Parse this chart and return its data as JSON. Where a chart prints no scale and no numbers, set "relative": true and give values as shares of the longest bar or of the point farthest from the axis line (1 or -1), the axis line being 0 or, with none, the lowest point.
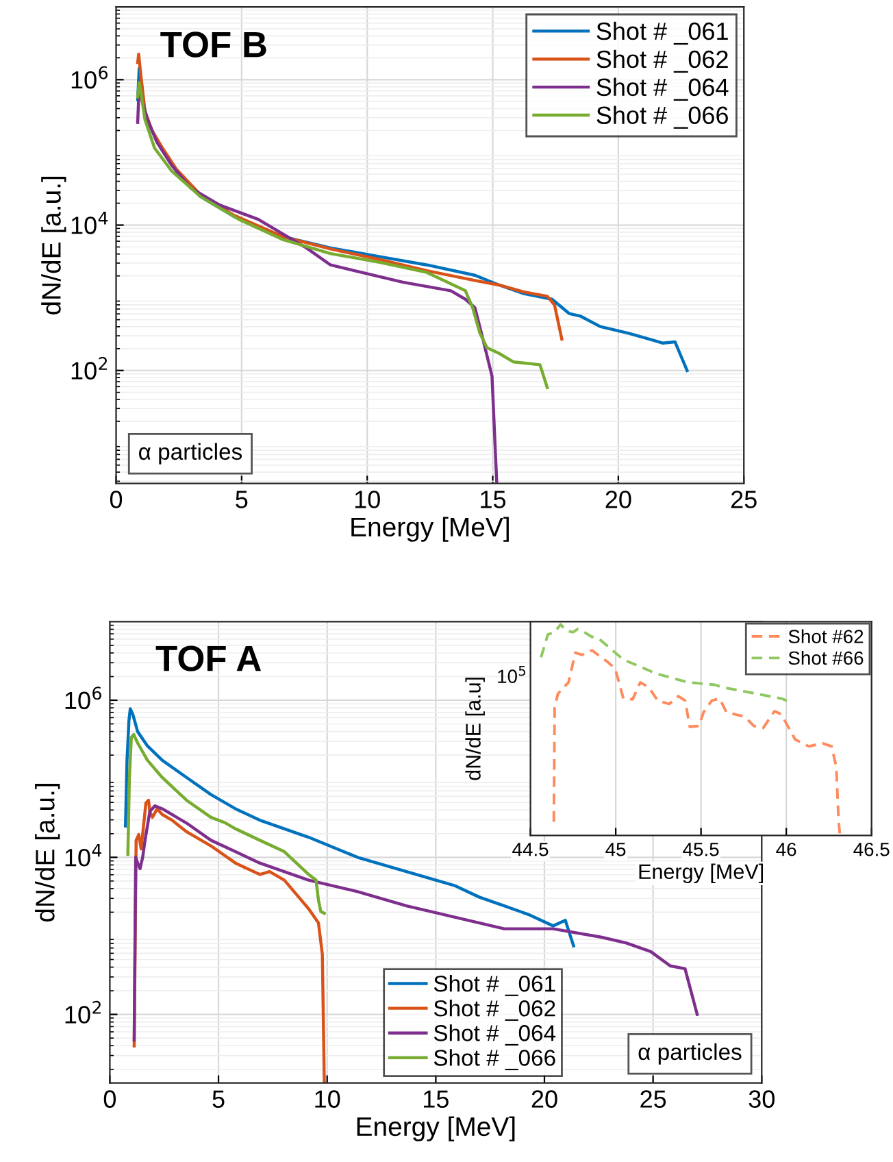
{
  "chart_data": [
    {
      "type": "line",
      "title": "TOF B",
      "xlabel": "Energy [MeV]",
      "ylabel": "dN/dE [a.u.]",
      "log": "y",
      "grid": true,
      "legend": "top right",
      "annotations": [
        "α particles"
      ],
      "xlim": [
        0,
        25
      ],
      "xticks": [
        0,
        5,
        10,
        15,
        20,
        25
      ],
      "ylim": [
        2.8,
        10000000
      ],
      "yticks": [
        {
          "value": 100,
          "label": "10$^{2}$"
        },
        {
          "value": 10000,
          "label": "10$^{4}$"
        },
        {
          "value": 1000000,
          "label": "10$^{6}$"
        }
      ],
      "series": [
        {
          "name": "Shot # _061",
          "color": "#0072bd",
          "x": [
            0.86,
            0.92,
            1.02,
            1.15,
            1.44,
            1.82,
            2.4,
            3.36,
            4.7,
            6.62,
            8.54,
            10.46,
            12.38,
            14.29,
            15.25,
            16.21,
            17.36,
            18.04,
            18.51,
            19.28,
            20.43,
            21.39,
            21.78,
            22.26,
            22.45,
            22.74
          ],
          "values": [
            531000,
            1440000,
            836000,
            338000,
            197000,
            110000,
            55600,
            24700,
            13100,
            6970,
            4850,
            3700,
            2830,
            2040,
            1500,
            1150,
            955,
            608,
            556,
            402,
            324,
            261,
            238,
            247,
            172,
            100
          ]
        },
        {
          "name": "Shot # _062",
          "color": "#d95319",
          "x": [
            0.86,
            0.9,
            0.98,
            1.15,
            1.44,
            1.82,
            2.4,
            3.36,
            4.7,
            6.62,
            8.54,
            10.46,
            12.38,
            14.29,
            15.25,
            16.21,
            17.17,
            17.46,
            17.75
          ],
          "values": [
            1720000,
            2250000,
            1200000,
            371000,
            197000,
            119000,
            58700,
            26100,
            13600,
            6970,
            4690,
            3380,
            2360,
            1730,
            1500,
            1210,
            1050,
            798,
            270
          ]
        },
        {
          "name": "Shot # _064",
          "color": "#7e2f8e",
          "x": [
            0.86,
            0.92,
            1.02,
            1.25,
            1.63,
            2.21,
            2.97,
            4.13,
            5.66,
            7.58,
            8.54,
            9.5,
            11.42,
            13.33,
            13.91,
            14.29,
            14.58,
            14.97,
            15.16
          ],
          "values": [
            258000,
            836000,
            531000,
            282000,
            137000,
            66600,
            32400,
            18800,
            12000,
            4850,
            2830,
            2360,
            1640,
            1250,
            955,
            729,
            296,
            83.5,
            2.8
          ]
        },
        {
          "name": "Shot # _066",
          "color": "#77ac30",
          "x": [
            0.86,
            0.92,
            0.98,
            1.15,
            1.53,
            2.21,
            3.36,
            4.89,
            6.62,
            8.54,
            10.46,
            12.38,
            13.91,
            14.2,
            14.49,
            14.77,
            15.25,
            15.83,
            16.88,
            17.17
          ],
          "values": [
            582000,
            914000,
            697000,
            282000,
            115000,
            55600,
            24700,
            12000,
            6370,
            4060,
            3090,
            2230,
            1250,
            729,
            324,
            206,
            172,
            131,
            120,
            58.2
          ]
        }
      ]
    },
    {
      "type": "line",
      "title": "TOF A",
      "xlabel": "Energy [MeV]",
      "ylabel": "dN/dE [a.u.]",
      "log": "y",
      "grid": true,
      "legend": "bottom",
      "annotations": [
        "α particles"
      ],
      "xlim": [
        0,
        30
      ],
      "xticks": [
        0,
        5,
        10,
        15,
        20,
        25,
        30
      ],
      "ylim": [
        13.4,
        10000000
      ],
      "yticks": [
        {
          "value": 100,
          "label": "10$^{2}$"
        },
        {
          "value": 10000,
          "label": "10$^{4}$"
        },
        {
          "value": 1000000,
          "label": "10$^{6}$"
        }
      ],
      "series": [
        {
          "name": "Shot # _061",
          "color": "#0072bd",
          "x": [
            0.72,
            0.79,
            0.88,
            0.94,
            1.06,
            1.28,
            1.73,
            2.41,
            3.53,
            4.65,
            5.78,
            6.9,
            9.15,
            11.4,
            13.65,
            15.9,
            17.02,
            18.15,
            19.27,
            20.4,
            20.96,
            21.34
          ],
          "values": [
            25100,
            172000,
            556000,
            778000,
            658000,
            398000,
            262000,
            172000,
            104000,
            63100,
            41500,
            29700,
            18000,
            10000,
            6580,
            4330,
            3100,
            2410,
            1870,
            1340,
            1580,
            746
          ]
        },
        {
          "name": "Shot # _062",
          "color": "#d95319",
          "x": [
            1.12,
            1.21,
            1.33,
            1.44,
            1.55,
            1.66,
            1.78,
            1.84,
            1.96,
            2.18,
            2.41,
            2.86,
            3.53,
            4.65,
            5.78,
            6.9,
            7.35,
            8.03,
            8.7,
            9.15,
            9.6,
            9.78,
            9.87
          ],
          "values": [
            39.8,
            16500,
            19500,
            12800,
            25100,
            49100,
            53300,
            38200,
            32300,
            41500,
            35100,
            29700,
            21200,
            14000,
            8450,
            6050,
            6580,
            5120,
            3100,
            2210,
            1460,
            581,
            13.4
          ]
        },
        {
          "name": "Shot # _064",
          "color": "#7e2f8e",
          "x": [
            1.12,
            1.19,
            1.28,
            1.39,
            1.51,
            1.62,
            1.84,
            2.07,
            2.41,
            3.53,
            4.65,
            5.78,
            6.9,
            9.15,
            11.4,
            13.65,
            15.9,
            18.15,
            20.4,
            22.64,
            23.77,
            24.89,
            25.79,
            26.47,
            27.03
          ],
          "values": [
            47.1,
            10000,
            8450,
            7160,
            10000,
            16500,
            38200,
            45200,
            41500,
            27300,
            16500,
            11800,
            8450,
            5120,
            3660,
            2410,
            1720,
            1230,
            1230,
            959,
            811,
            631,
            415,
            382,
            100
          ]
        },
        {
          "name": "Shot # _066",
          "color": "#77ac30",
          "x": [
            0.83,
            0.9,
            0.99,
            1.1,
            1.28,
            1.73,
            2.41,
            3.53,
            4.65,
            5.33,
            5.78,
            6.9,
            8.03,
            9.15,
            9.49,
            9.6,
            9.71,
            9.87
          ],
          "values": [
            10900,
            104000,
            337000,
            366000,
            285000,
            172000,
            104000,
            53300,
            32300,
            27300,
            23100,
            16500,
            11800,
            6050,
            5120,
            2850,
            2040,
            1940
          ]
        }
      ]
    },
    {
      "type": "line",
      "xlabel": "Energy [MeV]",
      "ylabel": "dN/dE [a.u]",
      "relative": true,
      "grid": "x",
      "legend": "top right",
      "line_style": "dashed",
      "annotations": [
        "10$^{5}$"
      ],
      "xlim": [
        44.5,
        46.5
      ],
      "xticks": [
        44.5,
        45,
        45.5,
        46,
        46.5
      ],
      "series": [
        {
          "name": "Shot #62",
          "color": "#ff8a5c",
          "x": [
            44.637,
            44.642,
            44.661,
            44.696,
            44.723,
            44.763,
            44.803,
            44.822,
            44.862,
            44.897,
            44.951,
            44.997,
            45.045,
            45.099,
            45.144,
            45.193,
            45.246,
            45.313,
            45.367,
            45.407,
            45.434,
            45.488,
            45.515,
            45.563,
            45.609,
            45.649,
            45.756,
            45.81,
            45.864,
            45.931,
            45.971,
            46.052,
            46.132,
            46.213,
            46.266,
            46.293,
            46.307,
            46.315
          ],
          "values": [
            0.065,
            0.606,
            0.671,
            0.703,
            0.725,
            0.866,
            0.855,
            0.866,
            0.877,
            0.855,
            0.823,
            0.79,
            0.649,
            0.645,
            0.725,
            0.703,
            0.639,
            0.623,
            0.66,
            0.639,
            0.515,
            0.519,
            0.584,
            0.639,
            0.649,
            0.584,
            0.563,
            0.519,
            0.509,
            0.589,
            0.574,
            0.455,
            0.422,
            0.437,
            0.422,
            0.325,
            0.065,
            0
          ]
        },
        {
          "name": "Shot #66",
          "color": "#8fc760",
          "x": [
            44.562,
            44.602,
            44.642,
            44.677,
            44.709,
            44.75,
            44.777,
            44.817,
            44.857,
            44.897,
            44.951,
            44.997,
            45.045,
            45.152,
            45.233,
            45.394,
            45.434,
            45.582,
            45.622,
            45.971,
            46.003
          ],
          "values": [
            0.844,
            0.952,
            0.963,
            1,
            0.97,
            0.963,
            0.978,
            0.963,
            0.942,
            0.935,
            0.898,
            0.866,
            0.833,
            0.797,
            0.768,
            0.732,
            0.725,
            0.714,
            0.703,
            0.649,
            0.639
          ]
        }
      ]
    }
  ]
}
